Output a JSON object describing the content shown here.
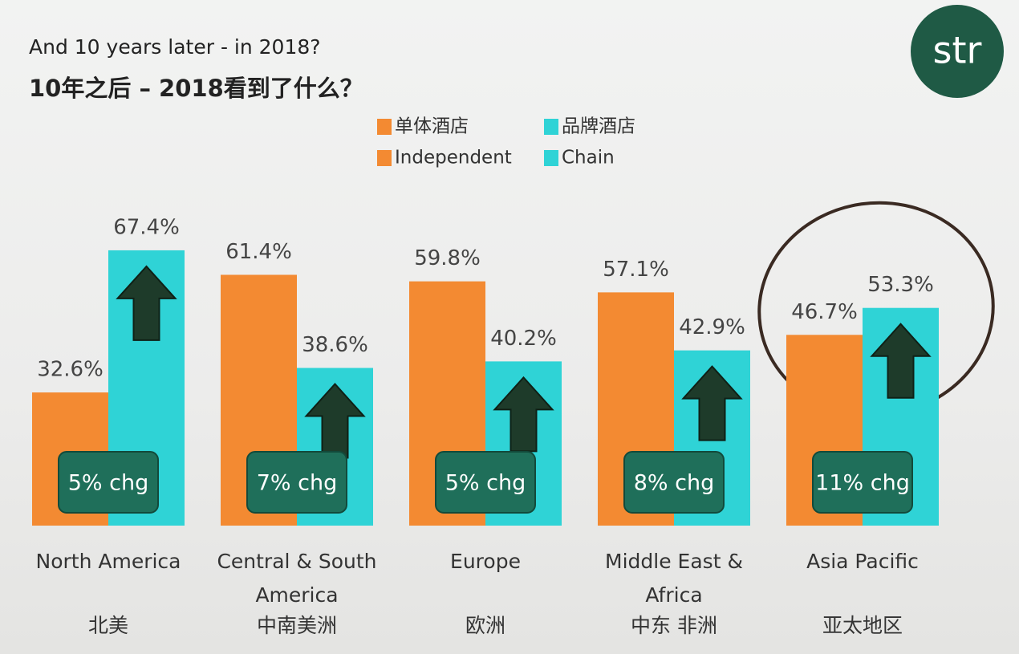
{
  "chart_data": {
    "type": "bar",
    "title": "And 10 years later - in 2018?",
    "subtitle": "10年之后 – 2018看到了什么？",
    "logo": "str",
    "categories": [
      "North America",
      "Central & South America",
      "Europe",
      "Middle East & Africa",
      "Asia Pacific"
    ],
    "categories_zh": [
      "北美",
      "中南美洲",
      "欧洲",
      "中东 非洲",
      "亚太地区"
    ],
    "series": [
      {
        "name": "Independent",
        "name_zh": "单体酒店",
        "color": "#f38a32",
        "values": [
          32.6,
          61.4,
          59.8,
          57.1,
          46.7
        ],
        "value_labels": [
          "32.6%",
          "61.4%",
          "59.8%",
          "57.1%",
          "46.7%"
        ]
      },
      {
        "name": "Chain",
        "name_zh": "品牌酒店",
        "color": "#2fd3d6",
        "values": [
          67.4,
          38.6,
          40.2,
          42.9,
          53.3
        ],
        "value_labels": [
          "67.4%",
          "38.6%",
          "40.2%",
          "42.9%",
          "53.3%"
        ]
      }
    ],
    "change_labels": [
      "5% chg",
      "7% chg",
      "5% chg",
      "8% chg",
      "11% chg"
    ]
  }
}
